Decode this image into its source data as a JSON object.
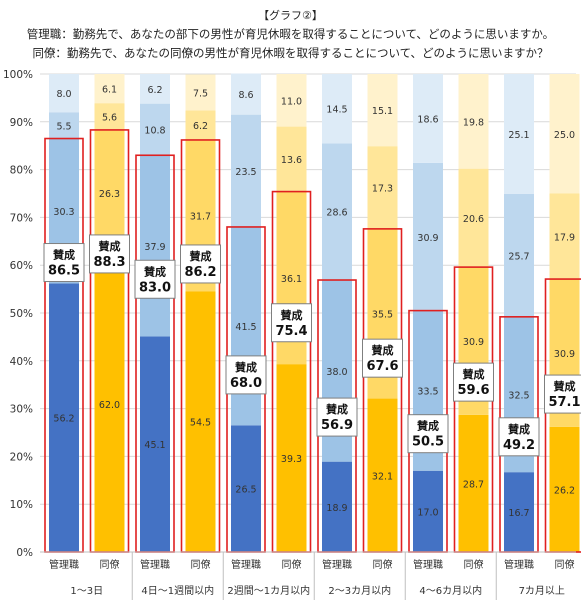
{
  "header": {
    "tag": "【グラフ②】",
    "line1": "管理職：勤務先で、あなたの部下の男性が育児休暇を取得することについて、どのように思いますか。",
    "line2": "同僚：勤務先で、あなたの同僚の男性が育児休暇を取得することについて、どのように思いますか？"
  },
  "colors": {
    "manager": [
      "#4472c4",
      "#9dc3e6",
      "#bdd7ee",
      "#ddebf7"
    ],
    "colleague": [
      "#ffc000",
      "#ffd966",
      "#ffe699",
      "#fff2cc"
    ],
    "outline": "#e02020",
    "axis": "#bfbfbf"
  },
  "chart_data": {
    "type": "bar",
    "stacked": true,
    "ylim": [
      0,
      100
    ],
    "yticks": [
      "0%",
      "10%",
      "20%",
      "30%",
      "40%",
      "50%",
      "60%",
      "70%",
      "80%",
      "90%",
      "100%"
    ],
    "grid": true,
    "callout_prefix": "賛成",
    "groups": [
      {
        "label": "1～3日",
        "bars": [
          {
            "label": "管理職",
            "role": "manager",
            "values": [
              56.2,
              30.3,
              5.5,
              8.0
            ],
            "approve": "86.5"
          },
          {
            "label": "同僚",
            "role": "colleague",
            "values": [
              62.0,
              26.3,
              5.6,
              6.1
            ],
            "approve": "88.3"
          }
        ]
      },
      {
        "label": "4日～1週間以内",
        "bars": [
          {
            "label": "管理職",
            "role": "manager",
            "values": [
              45.1,
              37.9,
              10.8,
              6.2
            ],
            "approve": "83.0"
          },
          {
            "label": "同僚",
            "role": "colleague",
            "values": [
              54.5,
              31.7,
              6.2,
              7.5
            ],
            "approve": "86.2"
          }
        ]
      },
      {
        "label": "2週間～1カ月以内",
        "bars": [
          {
            "label": "管理職",
            "role": "manager",
            "values": [
              26.5,
              41.5,
              23.5,
              8.6
            ],
            "approve": "68.0"
          },
          {
            "label": "同僚",
            "role": "colleague",
            "values": [
              39.3,
              36.1,
              13.6,
              11.0
            ],
            "approve": "75.4"
          }
        ]
      },
      {
        "label": "2～3カ月以内",
        "bars": [
          {
            "label": "管理職",
            "role": "manager",
            "values": [
              18.9,
              38.0,
              28.6,
              14.5
            ],
            "approve": "56.9"
          },
          {
            "label": "同僚",
            "role": "colleague",
            "values": [
              32.1,
              35.5,
              17.3,
              15.1
            ],
            "approve": "67.6"
          }
        ]
      },
      {
        "label": "4～6カ月以内",
        "bars": [
          {
            "label": "管理職",
            "role": "manager",
            "values": [
              17.0,
              33.5,
              30.9,
              18.6
            ],
            "approve": "50.5"
          },
          {
            "label": "同僚",
            "role": "colleague",
            "values": [
              28.7,
              30.9,
              20.6,
              19.8
            ],
            "approve": "59.6"
          }
        ]
      },
      {
        "label": "7カ月以上",
        "bars": [
          {
            "label": "管理職",
            "role": "manager",
            "values": [
              16.7,
              32.5,
              25.7,
              25.1
            ],
            "approve": "49.2"
          },
          {
            "label": "同僚",
            "role": "colleague",
            "values": [
              26.2,
              30.9,
              17.9,
              25.0
            ],
            "approve": "57.1"
          }
        ]
      }
    ]
  }
}
